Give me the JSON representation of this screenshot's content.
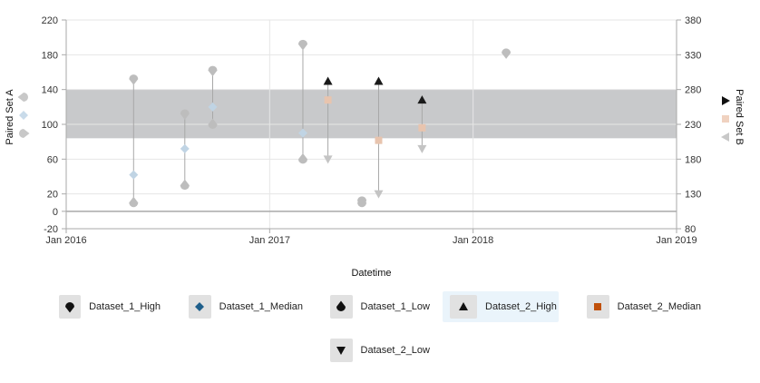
{
  "chart_data": {
    "type": "scatter",
    "title": "",
    "xlabel": "Datetime",
    "ylabel_left": "Paired Set A",
    "ylabel_right": "Paired Set B",
    "x_ticks": [
      "Jan 2016",
      "Jan 2017",
      "Jan 2018",
      "Jan 2019"
    ],
    "x_range": [
      "2016-01-01",
      "2019-01-01"
    ],
    "y_left_ticks": [
      -20,
      0,
      20,
      60,
      100,
      140,
      180,
      220
    ],
    "y_left_range": [
      -20,
      220
    ],
    "y_right_ticks": [
      80,
      130,
      180,
      230,
      280,
      330,
      380
    ],
    "y_right_range": [
      80,
      380
    ],
    "band": {
      "axis": "left",
      "from": 84,
      "to": 140,
      "color": "#c8c9cb"
    },
    "zero_line": 0,
    "series": [
      {
        "name": "Dataset_1_High",
        "axis": "left",
        "marker": "teardrop-down",
        "color": "#bdbdbd",
        "points": [
          [
            "2016-05-01",
            152
          ],
          [
            "2016-08-01",
            112
          ],
          [
            "2016-09-20",
            162
          ],
          [
            "2017-03-01",
            192
          ],
          [
            "2017-06-15",
            12
          ],
          [
            "2018-03-01",
            182
          ]
        ]
      },
      {
        "name": "Dataset_1_Median",
        "axis": "left",
        "marker": "diamond",
        "color": "#c0d4e4",
        "points": [
          [
            "2016-05-01",
            42
          ],
          [
            "2016-08-01",
            72
          ],
          [
            "2016-09-20",
            120
          ],
          [
            "2017-03-01",
            90
          ]
        ]
      },
      {
        "name": "Dataset_1_Low",
        "axis": "left",
        "marker": "teardrop-up",
        "color": "#bdbdbd",
        "points": [
          [
            "2016-05-01",
            10
          ],
          [
            "2016-08-01",
            30
          ],
          [
            "2016-09-20",
            100
          ],
          [
            "2017-03-01",
            60
          ],
          [
            "2017-06-15",
            10
          ]
        ]
      },
      {
        "name": "Dataset_2_High",
        "axis": "right",
        "marker": "triangle-up",
        "color": "#1a1a1a",
        "points": [
          [
            "2017-04-15",
            292
          ],
          [
            "2017-07-15",
            292
          ],
          [
            "2017-10-01",
            265
          ]
        ]
      },
      {
        "name": "Dataset_2_Median",
        "axis": "right",
        "marker": "square",
        "color": "#e8c4ae",
        "points": [
          [
            "2017-04-15",
            265
          ],
          [
            "2017-07-15",
            207
          ],
          [
            "2017-10-01",
            225
          ]
        ]
      },
      {
        "name": "Dataset_2_Low",
        "axis": "right",
        "marker": "triangle-down",
        "color": "#c4c4c4",
        "points": [
          [
            "2017-04-15",
            180
          ],
          [
            "2017-07-15",
            130
          ],
          [
            "2017-10-01",
            195
          ]
        ]
      }
    ],
    "connectors": [
      {
        "x": "2016-05-01",
        "from": 152,
        "to": 10,
        "axis": "left"
      },
      {
        "x": "2016-08-01",
        "from": 112,
        "to": 30,
        "axis": "left"
      },
      {
        "x": "2016-09-20",
        "from": 162,
        "to": 100,
        "axis": "left"
      },
      {
        "x": "2017-03-01",
        "from": 192,
        "to": 60,
        "axis": "left"
      },
      {
        "x": "2017-04-15",
        "from": 292,
        "to": 180,
        "axis": "right"
      },
      {
        "x": "2017-07-15",
        "from": 292,
        "to": 130,
        "axis": "right"
      },
      {
        "x": "2017-10-01",
        "from": 265,
        "to": 195,
        "axis": "right"
      }
    ],
    "left_axis_markers": [
      {
        "marker": "teardrop-left",
        "color": "#c8c8c8"
      },
      {
        "marker": "diamond",
        "color": "#c9dbea"
      },
      {
        "marker": "teardrop-right",
        "color": "#c8c8c8"
      }
    ],
    "right_axis_markers": [
      {
        "marker": "triangle-right",
        "color": "#111111"
      },
      {
        "marker": "square",
        "color": "#f0d2c0"
      },
      {
        "marker": "triangle-left",
        "color": "#c8c8c8"
      }
    ],
    "legend": {
      "placement": "bottom",
      "active": "Dataset_2_High",
      "items": [
        {
          "name": "Dataset_1_High",
          "marker": "teardrop-down",
          "color": "#111111"
        },
        {
          "name": "Dataset_1_Median",
          "marker": "diamond",
          "color": "#1f5f8b"
        },
        {
          "name": "Dataset_1_Low",
          "marker": "teardrop-up",
          "color": "#111111"
        },
        {
          "name": "Dataset_2_High",
          "marker": "triangle-up",
          "color": "#111111"
        },
        {
          "name": "Dataset_2_Median",
          "marker": "square",
          "color": "#c0500a"
        },
        {
          "name": "Dataset_2_Low",
          "marker": "triangle-down",
          "color": "#111111"
        }
      ]
    }
  }
}
